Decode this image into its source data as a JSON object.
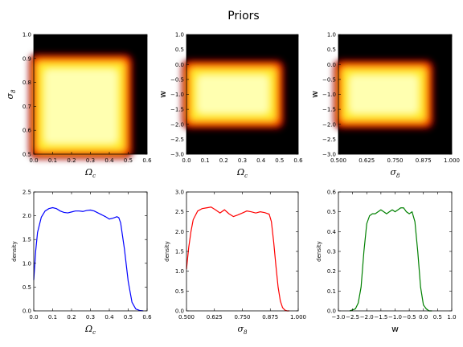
{
  "title": "Priors",
  "chart_data": [
    {
      "type": "heatmap",
      "xlabel_main": "Ω",
      "xlabel_sub": "c",
      "ylabel_main": "σ",
      "ylabel_sub": "8",
      "xlim": [
        0.0,
        0.6
      ],
      "ylim": [
        0.5,
        1.0
      ],
      "xticks": [
        "0.0",
        "0.1",
        "0.2",
        "0.3",
        "0.4",
        "0.5",
        "0.6"
      ],
      "yticks": [
        "0.5",
        "0.6",
        "0.7",
        "0.8",
        "0.9",
        "1.0"
      ],
      "support_x": [
        0.0,
        0.5
      ],
      "support_y": [
        0.5,
        0.9
      ],
      "colormap": "hot"
    },
    {
      "type": "heatmap",
      "xlabel_main": "Ω",
      "xlabel_sub": "c",
      "ylabel_main": "w",
      "ylabel_sub": "",
      "xlim": [
        0.0,
        0.6
      ],
      "ylim": [
        -3.0,
        1.0
      ],
      "xticks": [
        "0.0",
        "0.1",
        "0.2",
        "0.3",
        "0.4",
        "0.5",
        "0.6"
      ],
      "yticks": [
        "−3.0",
        "−2.5",
        "−2.0",
        "−1.5",
        "−1.0",
        "−0.5",
        "0.0",
        "0.5",
        "1.0"
      ],
      "support_x": [
        0.0,
        0.5
      ],
      "support_y": [
        -2.0,
        0.0
      ],
      "colormap": "hot"
    },
    {
      "type": "heatmap",
      "xlabel_main": "σ",
      "xlabel_sub": "8",
      "ylabel_main": "w",
      "ylabel_sub": "",
      "xlim": [
        0.5,
        1.0
      ],
      "ylim": [
        -3.0,
        1.0
      ],
      "xticks": [
        "0.500",
        "0.625",
        "0.750",
        "0.875",
        "1.000"
      ],
      "yticks": [
        "−3.0",
        "−2.5",
        "−2.0",
        "−1.5",
        "−1.0",
        "−0.5",
        "0.0",
        "0.5",
        "1.0"
      ],
      "support_x": [
        0.5,
        0.9
      ],
      "support_y": [
        -2.0,
        0.0
      ],
      "colormap": "hot"
    },
    {
      "type": "line",
      "xlabel_main": "Ω",
      "xlabel_sub": "c",
      "ylabel": "density",
      "xlim": [
        0.0,
        0.6
      ],
      "ylim": [
        0.0,
        2.5
      ],
      "xticks": [
        "0.0",
        "0.1",
        "0.2",
        "0.3",
        "0.4",
        "0.5",
        "0.6"
      ],
      "yticks": [
        "0.0",
        "0.5",
        "1.0",
        "1.5",
        "2.0",
        "2.5"
      ],
      "color": "#0000ff",
      "x": [
        0.0,
        0.01,
        0.02,
        0.04,
        0.06,
        0.08,
        0.1,
        0.12,
        0.14,
        0.16,
        0.18,
        0.2,
        0.22,
        0.24,
        0.26,
        0.28,
        0.3,
        0.32,
        0.34,
        0.36,
        0.38,
        0.4,
        0.42,
        0.44,
        0.45,
        0.46,
        0.48,
        0.5,
        0.52,
        0.54,
        0.56,
        0.58
      ],
      "y": [
        0.65,
        1.25,
        1.65,
        1.97,
        2.1,
        2.15,
        2.17,
        2.15,
        2.1,
        2.07,
        2.06,
        2.08,
        2.1,
        2.1,
        2.09,
        2.11,
        2.12,
        2.1,
        2.06,
        2.02,
        1.98,
        1.93,
        1.95,
        1.98,
        1.96,
        1.85,
        1.3,
        0.62,
        0.18,
        0.04,
        0.01,
        0.0
      ]
    },
    {
      "type": "line",
      "xlabel_main": "σ",
      "xlabel_sub": "8",
      "ylabel": "density",
      "xlim": [
        0.5,
        1.0
      ],
      "ylim": [
        0.0,
        3.0
      ],
      "xticks": [
        "0.500",
        "0.625",
        "0.750",
        "0.875",
        "1.000"
      ],
      "yticks": [
        "0.0",
        "0.5",
        "1.0",
        "1.5",
        "2.0",
        "2.5",
        "3.0"
      ],
      "color": "#ff0000",
      "x": [
        0.5,
        0.51,
        0.52,
        0.53,
        0.55,
        0.57,
        0.59,
        0.61,
        0.63,
        0.65,
        0.67,
        0.69,
        0.71,
        0.73,
        0.75,
        0.77,
        0.79,
        0.81,
        0.83,
        0.85,
        0.87,
        0.88,
        0.89,
        0.9,
        0.91,
        0.92,
        0.93,
        0.94,
        0.95,
        0.96
      ],
      "y": [
        1.05,
        1.6,
        2.0,
        2.3,
        2.52,
        2.58,
        2.6,
        2.62,
        2.55,
        2.47,
        2.55,
        2.45,
        2.38,
        2.42,
        2.47,
        2.52,
        2.5,
        2.47,
        2.5,
        2.48,
        2.44,
        2.25,
        1.75,
        1.15,
        0.6,
        0.25,
        0.08,
        0.02,
        0.0,
        0.0
      ]
    },
    {
      "type": "line",
      "xlabel_main": "w",
      "xlabel_sub": "",
      "ylabel": "density",
      "xlim": [
        -3.0,
        1.0
      ],
      "ylim": [
        0.0,
        0.6
      ],
      "xticks": [
        "−3.0",
        "−2.5",
        "−2.0",
        "−1.5",
        "−1.0",
        "−0.5",
        "0.0",
        "0.5",
        "1.0"
      ],
      "yticks": [
        "0.0",
        "0.1",
        "0.2",
        "0.3",
        "0.4",
        "0.5",
        "0.6"
      ],
      "color": "#008000",
      "x": [
        -2.6,
        -2.4,
        -2.3,
        -2.2,
        -2.1,
        -2.0,
        -1.9,
        -1.8,
        -1.7,
        -1.6,
        -1.5,
        -1.4,
        -1.3,
        -1.2,
        -1.1,
        -1.0,
        -0.9,
        -0.8,
        -0.7,
        -0.6,
        -0.5,
        -0.4,
        -0.3,
        -0.2,
        -0.1,
        0.0,
        0.1,
        0.2,
        0.3
      ],
      "y": [
        0.0,
        0.01,
        0.04,
        0.12,
        0.3,
        0.44,
        0.48,
        0.49,
        0.49,
        0.5,
        0.51,
        0.5,
        0.49,
        0.5,
        0.51,
        0.5,
        0.51,
        0.52,
        0.52,
        0.5,
        0.49,
        0.5,
        0.45,
        0.3,
        0.12,
        0.03,
        0.01,
        0.0,
        0.0
      ]
    }
  ]
}
